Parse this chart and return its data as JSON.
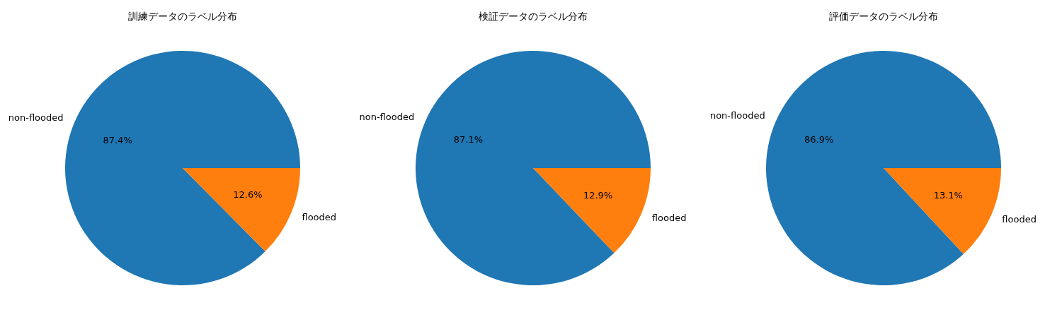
{
  "chart_data": [
    {
      "type": "pie",
      "title": "訓練データのラベル分布",
      "categories": [
        "non-flooded",
        "flooded"
      ],
      "values": [
        87.4,
        12.6
      ],
      "colors": [
        "#1f77b4",
        "#ff7f0e"
      ],
      "value_labels": [
        "87.4%",
        "12.6%"
      ]
    },
    {
      "type": "pie",
      "title": "検証データのラベル分布",
      "categories": [
        "non-flooded",
        "flooded"
      ],
      "values": [
        87.1,
        12.9
      ],
      "colors": [
        "#1f77b4",
        "#ff7f0e"
      ],
      "value_labels": [
        "87.1%",
        "12.9%"
      ]
    },
    {
      "type": "pie",
      "title": "評価データのラベル分布",
      "categories": [
        "non-flooded",
        "flooded"
      ],
      "values": [
        86.9,
        13.1
      ],
      "colors": [
        "#1f77b4",
        "#ff7f0e"
      ],
      "value_labels": [
        "86.9%",
        "13.1%"
      ]
    }
  ]
}
